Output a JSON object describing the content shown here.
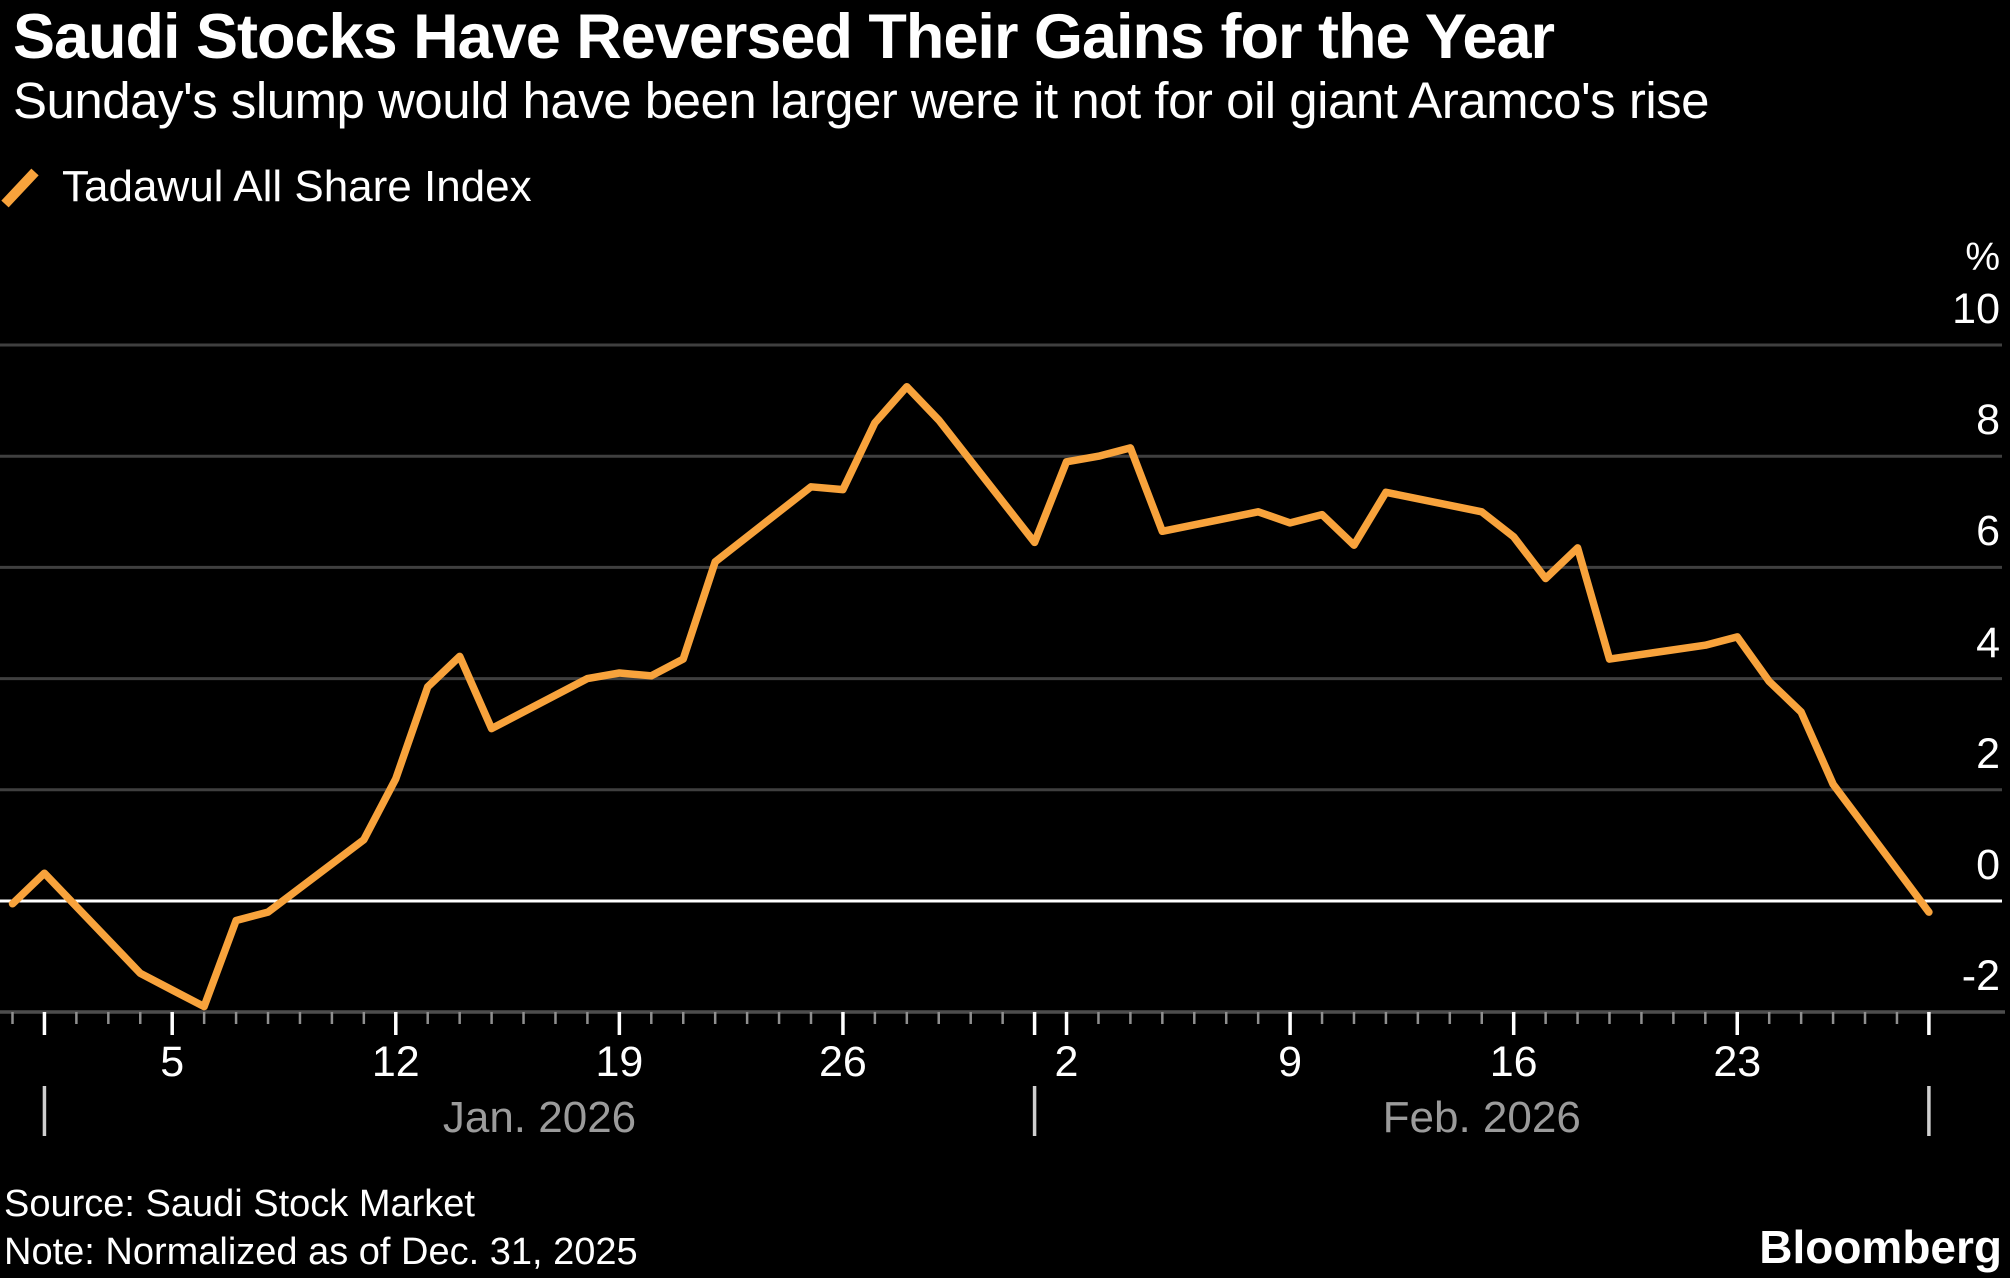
{
  "header": {
    "title": "Saudi Stocks Have Reversed Their Gains for the Year",
    "subtitle": "Sunday's slump would have been larger were it not for oil giant Aramco's rise"
  },
  "legend": {
    "label": "Tadawul All Share Index"
  },
  "footer": {
    "source": "Source: Saudi Stock Market",
    "note": "Note: Normalized as of Dec. 31, 2025",
    "brand": "Bloomberg"
  },
  "colors": {
    "background": "#000000",
    "line": "#F8A33C",
    "grid": "#3f3f3f",
    "zero_line": "#ffffff",
    "axis": "#4d4d4d",
    "tick_minor": "#8f8f8f",
    "tick_major": "#ffffff",
    "month_bar": "#cfcfcf",
    "month_text": "#9b9b9b",
    "text": "#ffffff"
  },
  "chart_data": {
    "type": "line",
    "title": "Saudi Stocks Have Reversed Their Gains for the Year",
    "series_name": "Tadawul All Share Index",
    "unit": "%",
    "ylabel": "%",
    "ylim": [
      -2,
      10
    ],
    "grid": true,
    "legend_position": "top-left",
    "y_ticks": [
      10,
      8,
      6,
      4,
      2,
      0,
      -2
    ],
    "x_ticks": [
      {
        "date": "2026-01-05",
        "label": "5"
      },
      {
        "date": "2026-01-12",
        "label": "12"
      },
      {
        "date": "2026-01-19",
        "label": "19"
      },
      {
        "date": "2026-01-26",
        "label": "26"
      },
      {
        "date": "2026-02-02",
        "label": "2"
      },
      {
        "date": "2026-02-09",
        "label": "9"
      },
      {
        "date": "2026-02-16",
        "label": "16"
      },
      {
        "date": "2026-02-23",
        "label": "23"
      }
    ],
    "month_markers": [
      "2026-01-01",
      "2026-02-01",
      "2026-03-01"
    ],
    "month_labels": [
      {
        "label": "Jan. 2026",
        "from": "2026-01-01",
        "to": "2026-02-01"
      },
      {
        "label": "Feb. 2026",
        "from": "2026-02-01",
        "to": "2026-03-01"
      }
    ],
    "x_range": [
      "2025-12-31",
      "2026-03-01"
    ],
    "points": [
      {
        "date": "2025-12-31",
        "value": -0.05
      },
      {
        "date": "2026-01-01",
        "value": 0.5
      },
      {
        "date": "2026-01-04",
        "value": -1.3
      },
      {
        "date": "2026-01-05",
        "value": -1.6
      },
      {
        "date": "2026-01-06",
        "value": -1.9
      },
      {
        "date": "2026-01-07",
        "value": -0.35
      },
      {
        "date": "2026-01-08",
        "value": -0.2
      },
      {
        "date": "2026-01-11",
        "value": 1.1
      },
      {
        "date": "2026-01-12",
        "value": 2.2
      },
      {
        "date": "2026-01-13",
        "value": 3.85
      },
      {
        "date": "2026-01-14",
        "value": 4.4
      },
      {
        "date": "2026-01-15",
        "value": 3.1
      },
      {
        "date": "2026-01-18",
        "value": 4.0
      },
      {
        "date": "2026-01-19",
        "value": 4.1
      },
      {
        "date": "2026-01-20",
        "value": 4.05
      },
      {
        "date": "2026-01-21",
        "value": 4.35
      },
      {
        "date": "2026-01-22",
        "value": 6.1
      },
      {
        "date": "2026-01-25",
        "value": 7.45
      },
      {
        "date": "2026-01-26",
        "value": 7.4
      },
      {
        "date": "2026-01-27",
        "value": 8.6
      },
      {
        "date": "2026-01-28",
        "value": 9.25
      },
      {
        "date": "2026-01-29",
        "value": 8.65
      },
      {
        "date": "2026-02-01",
        "value": 6.45
      },
      {
        "date": "2026-02-02",
        "value": 7.9
      },
      {
        "date": "2026-02-03",
        "value": 8.0
      },
      {
        "date": "2026-02-04",
        "value": 8.15
      },
      {
        "date": "2026-02-05",
        "value": 6.65
      },
      {
        "date": "2026-02-08",
        "value": 7.0
      },
      {
        "date": "2026-02-09",
        "value": 6.8
      },
      {
        "date": "2026-02-10",
        "value": 6.95
      },
      {
        "date": "2026-02-11",
        "value": 6.4
      },
      {
        "date": "2026-02-12",
        "value": 7.35
      },
      {
        "date": "2026-02-15",
        "value": 7.0
      },
      {
        "date": "2026-02-16",
        "value": 6.55
      },
      {
        "date": "2026-02-17",
        "value": 5.8
      },
      {
        "date": "2026-02-18",
        "value": 6.35
      },
      {
        "date": "2026-02-19",
        "value": 4.35
      },
      {
        "date": "2026-02-22",
        "value": 4.6
      },
      {
        "date": "2026-02-23",
        "value": 4.75
      },
      {
        "date": "2026-02-24",
        "value": 3.95
      },
      {
        "date": "2026-02-25",
        "value": 3.4
      },
      {
        "date": "2026-02-26",
        "value": 2.1
      },
      {
        "date": "2026-03-01",
        "value": -0.2
      }
    ]
  }
}
